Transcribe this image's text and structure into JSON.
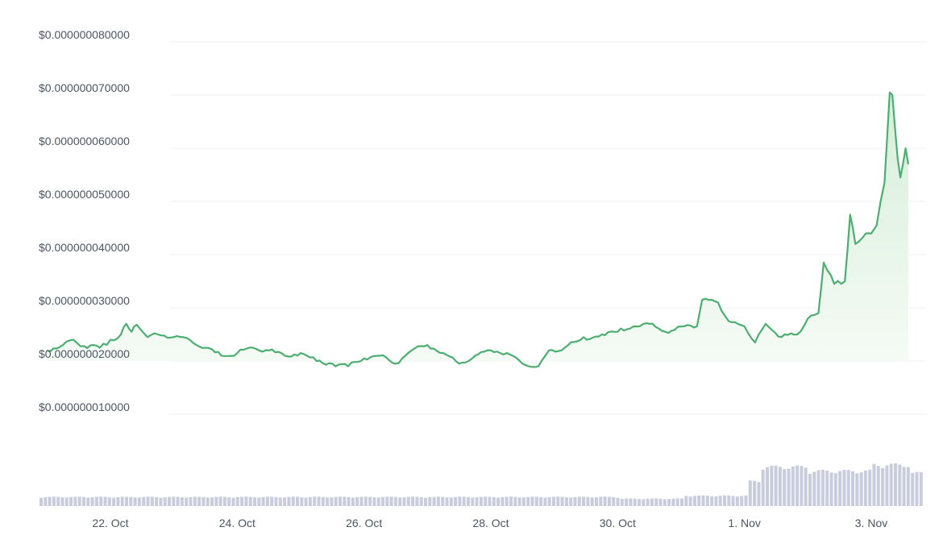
{
  "chart_data": {
    "type": "area",
    "title": "",
    "xlabel": "",
    "ylabel": "",
    "y_unit": "USD",
    "ylim": [
      1e-08,
      8e-08
    ],
    "y_ticks": [
      {
        "value": 8e-08,
        "label": "$0.000000080000"
      },
      {
        "value": 7e-08,
        "label": "$0.000000070000"
      },
      {
        "value": 6e-08,
        "label": "$0.000000060000"
      },
      {
        "value": 5e-08,
        "label": "$0.000000050000"
      },
      {
        "value": 4e-08,
        "label": "$0.000000040000"
      },
      {
        "value": 3e-08,
        "label": "$0.000000030000"
      },
      {
        "value": 2e-08,
        "label": "$0.000000020000"
      },
      {
        "value": 1e-08,
        "label": "$0.000000010000"
      }
    ],
    "x_range": [
      "2023-10-21",
      "2023-11-03T14:00"
    ],
    "x_ticks": [
      {
        "date": "2023-10-22",
        "label": "22. Oct"
      },
      {
        "date": "2023-10-24",
        "label": "24. Oct"
      },
      {
        "date": "2023-10-26",
        "label": "26. Oct"
      },
      {
        "date": "2023-10-28",
        "label": "28. Oct"
      },
      {
        "date": "2023-10-30",
        "label": "30. Oct"
      },
      {
        "date": "2023-11-01",
        "label": "1. Nov"
      },
      {
        "date": "2023-11-03",
        "label": "3. Nov"
      }
    ],
    "grid": true,
    "colors": {
      "line": "#4cae70",
      "fill_top": "#d6eed9",
      "fill_bottom": "#f6fbf6",
      "volume": "#c9ccdc",
      "grid": "#eef0f3"
    },
    "price_series": {
      "name": "",
      "points": [
        [
          "2023-10-21T00:00",
          2.2e-08
        ],
        [
          "2023-10-21T06:00",
          2.3e-08
        ],
        [
          "2023-10-21T10:00",
          2.4e-08
        ],
        [
          "2023-10-21T14:00",
          2.28e-08
        ],
        [
          "2023-10-21T20:00",
          2.25e-08
        ],
        [
          "2023-10-22T00:00",
          2.4e-08
        ],
        [
          "2023-10-22T04:00",
          2.5e-08
        ],
        [
          "2023-10-22T06:00",
          2.7e-08
        ],
        [
          "2023-10-22T08:00",
          2.55e-08
        ],
        [
          "2023-10-22T10:00",
          2.68e-08
        ],
        [
          "2023-10-22T14:00",
          2.45e-08
        ],
        [
          "2023-10-22T18:00",
          2.5e-08
        ],
        [
          "2023-10-23T00:00",
          2.45e-08
        ],
        [
          "2023-10-23T06:00",
          2.4e-08
        ],
        [
          "2023-10-23T12:00",
          2.25e-08
        ],
        [
          "2023-10-23T18:00",
          2.1e-08
        ],
        [
          "2023-10-24T00:00",
          2.15e-08
        ],
        [
          "2023-10-24T06:00",
          2.25e-08
        ],
        [
          "2023-10-24T12:00",
          2.2e-08
        ],
        [
          "2023-10-24T18:00",
          2.1e-08
        ],
        [
          "2023-10-25T00:00",
          2.15e-08
        ],
        [
          "2023-10-25T06:00",
          2e-08
        ],
        [
          "2023-10-25T12:00",
          1.95e-08
        ],
        [
          "2023-10-25T18:00",
          1.9e-08
        ],
        [
          "2023-10-26T00:00",
          2.05e-08
        ],
        [
          "2023-10-26T06:00",
          2.1e-08
        ],
        [
          "2023-10-26T12:00",
          1.95e-08
        ],
        [
          "2023-10-26T18:00",
          2.2e-08
        ],
        [
          "2023-10-27T00:00",
          2.3e-08
        ],
        [
          "2023-10-27T06:00",
          2.15e-08
        ],
        [
          "2023-10-27T12:00",
          1.95e-08
        ],
        [
          "2023-10-27T18:00",
          2.1e-08
        ],
        [
          "2023-10-28T00:00",
          2.2e-08
        ],
        [
          "2023-10-28T06:00",
          2.15e-08
        ],
        [
          "2023-10-28T12:00",
          1.95e-08
        ],
        [
          "2023-10-28T18:00",
          1.9e-08
        ],
        [
          "2023-10-28T22:00",
          2.2e-08
        ],
        [
          "2023-10-29T04:00",
          2.25e-08
        ],
        [
          "2023-10-29T10:00",
          2.4e-08
        ],
        [
          "2023-10-29T18:00",
          2.5e-08
        ],
        [
          "2023-10-30T00:00",
          2.55e-08
        ],
        [
          "2023-10-30T06:00",
          2.65e-08
        ],
        [
          "2023-10-30T12:00",
          2.7e-08
        ],
        [
          "2023-10-30T18:00",
          2.55e-08
        ],
        [
          "2023-10-31T00:00",
          2.65e-08
        ],
        [
          "2023-10-31T06:00",
          2.65e-08
        ],
        [
          "2023-10-31T08:00",
          3.15e-08
        ],
        [
          "2023-10-31T14:00",
          3.1e-08
        ],
        [
          "2023-10-31T18:00",
          2.75e-08
        ],
        [
          "2023-11-01T00:00",
          2.65e-08
        ],
        [
          "2023-11-01T04:00",
          2.35e-08
        ],
        [
          "2023-11-01T08:00",
          2.7e-08
        ],
        [
          "2023-11-01T14:00",
          2.45e-08
        ],
        [
          "2023-11-01T20:00",
          2.5e-08
        ],
        [
          "2023-11-02T00:00",
          2.8e-08
        ],
        [
          "2023-11-02T04:00",
          2.9e-08
        ],
        [
          "2023-11-02T06:00",
          3.85e-08
        ],
        [
          "2023-11-02T10:00",
          3.45e-08
        ],
        [
          "2023-11-02T14:00",
          3.5e-08
        ],
        [
          "2023-11-02T16:00",
          4.75e-08
        ],
        [
          "2023-11-02T18:00",
          4.2e-08
        ],
        [
          "2023-11-02T22:00",
          4.4e-08
        ],
        [
          "2023-11-03T00:00",
          4.4e-08
        ],
        [
          "2023-11-03T02:00",
          4.55e-08
        ],
        [
          "2023-11-03T05:00",
          5.35e-08
        ],
        [
          "2023-11-03T07:00",
          7.05e-08
        ],
        [
          "2023-11-03T08:00",
          7e-08
        ],
        [
          "2023-11-03T10:00",
          5.8e-08
        ],
        [
          "2023-11-03T11:00",
          5.45e-08
        ],
        [
          "2023-11-03T12:00",
          5.7e-08
        ],
        [
          "2023-11-03T13:00",
          6e-08
        ],
        [
          "2023-11-03T14:00",
          5.7e-08
        ]
      ]
    },
    "volume_series": {
      "name": "",
      "ranges": [
        {
          "from": "2023-10-21",
          "to": "2023-10-30",
          "relative": 0.22
        },
        {
          "from": "2023-10-30",
          "to": "2023-10-31",
          "relative": 0.18
        },
        {
          "from": "2023-10-31",
          "to": "2023-11-01",
          "relative": 0.25
        },
        {
          "from": "2023-11-01",
          "to": "2023-11-01T06:00",
          "relative": 0.6
        },
        {
          "from": "2023-11-01T06:00",
          "to": "2023-11-02",
          "relative": 0.95
        },
        {
          "from": "2023-11-02",
          "to": "2023-11-03",
          "relative": 0.85
        },
        {
          "from": "2023-11-03",
          "to": "2023-11-03T14:00",
          "relative": 1.0
        }
      ]
    }
  }
}
